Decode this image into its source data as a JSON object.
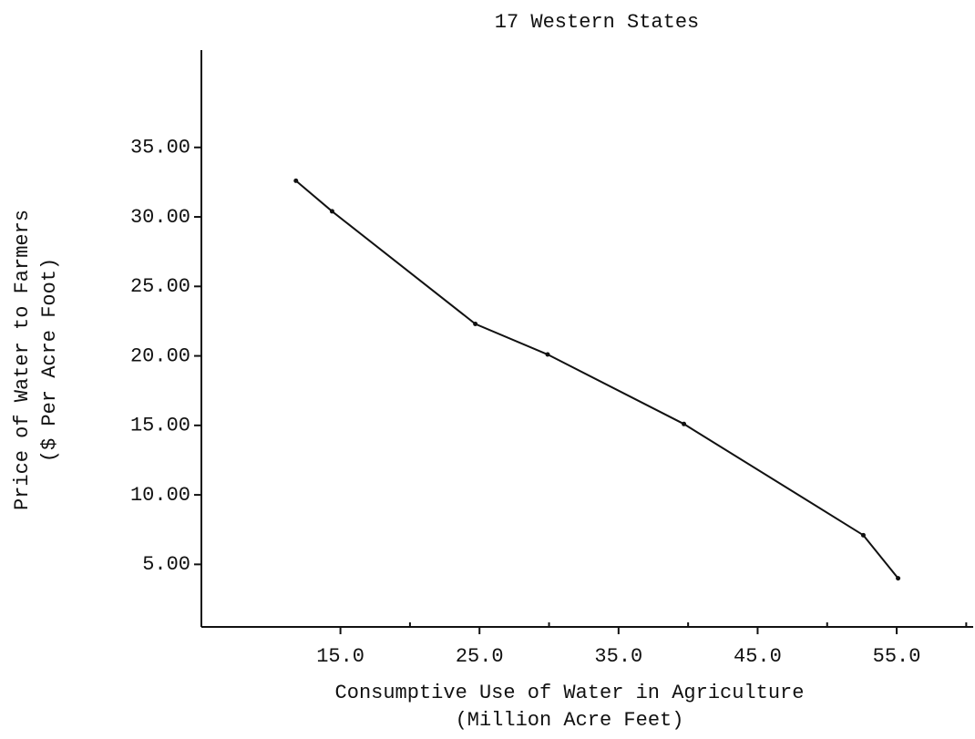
{
  "chart_data": {
    "type": "line",
    "title": "17 Western States",
    "xlabel": [
      "Consumptive Use of Water in Agriculture",
      "(Million Acre Feet)"
    ],
    "ylabel": [
      "Price of Water to Farmers",
      "($ Per Acre Foot)"
    ],
    "x": [
      11.8,
      14.4,
      24.7,
      29.9,
      39.7,
      52.6,
      55.1
    ],
    "values": [
      32.6,
      30.4,
      22.3,
      20.1,
      15.1,
      7.1,
      4.0
    ],
    "color": "#111111",
    "xlim": [
      5,
      60.5
    ],
    "ylim": [
      0.5,
      42
    ],
    "xticks": [
      {
        "value": 15,
        "label": "15.0"
      },
      {
        "value": 25,
        "label": "25.0"
      },
      {
        "value": 35,
        "label": "35.0"
      },
      {
        "value": 45,
        "label": "45.0"
      },
      {
        "value": 55,
        "label": "55.0"
      }
    ],
    "xticks_minor": [
      20,
      30,
      40,
      50,
      60
    ],
    "yticks": [
      {
        "value": 5,
        "label": "5.00"
      },
      {
        "value": 10,
        "label": "10.00"
      },
      {
        "value": 15,
        "label": "15.00"
      },
      {
        "value": 20,
        "label": "20.00"
      },
      {
        "value": 25,
        "label": "25.00"
      },
      {
        "value": 30,
        "label": "30.00"
      },
      {
        "value": 35,
        "label": "35.00"
      }
    ],
    "grid": false
  }
}
